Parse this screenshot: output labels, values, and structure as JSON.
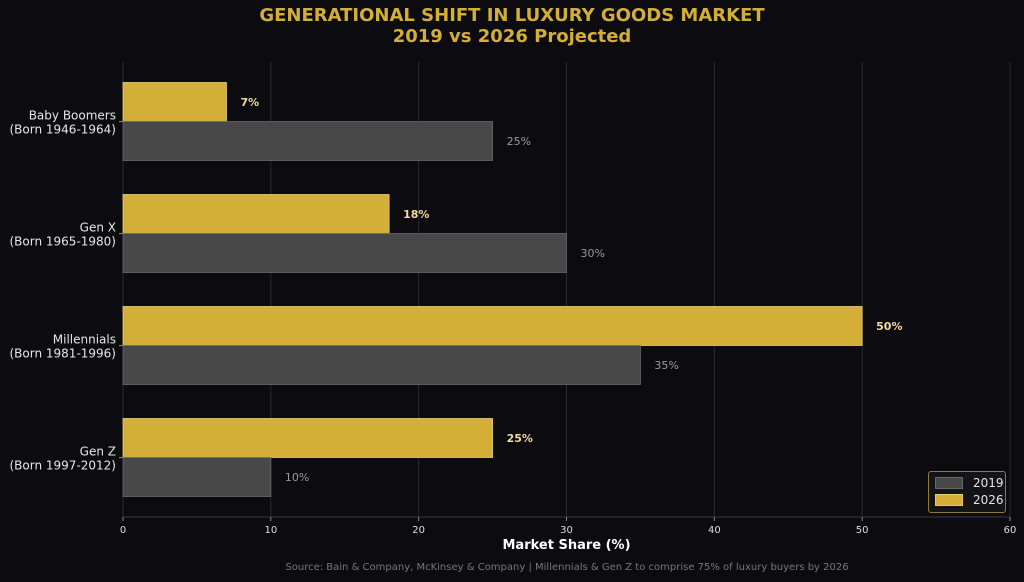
{
  "chart_data": {
    "type": "bar",
    "orientation": "horizontal",
    "title": "GENERATIONAL SHIFT IN LUXURY GOODS MARKET",
    "subtitle": "2019 vs 2026 Projected",
    "categories": [
      {
        "line1": "Baby Boomers",
        "line2": "(Born 1946-1964)"
      },
      {
        "line1": "Gen X",
        "line2": "(Born 1965-1980)"
      },
      {
        "line1": "Millennials",
        "line2": "(Born 1981-1996)"
      },
      {
        "line1": "Gen Z",
        "line2": "(Born 1997-2012)"
      }
    ],
    "series": [
      {
        "name": "2026",
        "values": [
          7,
          18,
          50,
          25
        ],
        "labels": [
          "7%",
          "18%",
          "50%",
          "25%"
        ],
        "color": "#d4af37"
      },
      {
        "name": "2019",
        "values": [
          25,
          30,
          35,
          10
        ],
        "labels": [
          "25%",
          "30%",
          "35%",
          "10%"
        ],
        "color": "#484848"
      }
    ],
    "xlabel": "Market Share (%)",
    "xlim": [
      0,
      60
    ],
    "xticks": [
      "0",
      "10",
      "20",
      "30",
      "40",
      "50",
      "60"
    ],
    "grid": true,
    "legend_position": "bottom-right",
    "legend": [
      {
        "label": "2019",
        "color": "#484848"
      },
      {
        "label": "2026",
        "color": "#d4af37"
      }
    ]
  },
  "source": "Source: Bain & Company, McKinsey & Company | Millennials & Gen Z to comprise 75% of luxury buyers by 2026"
}
